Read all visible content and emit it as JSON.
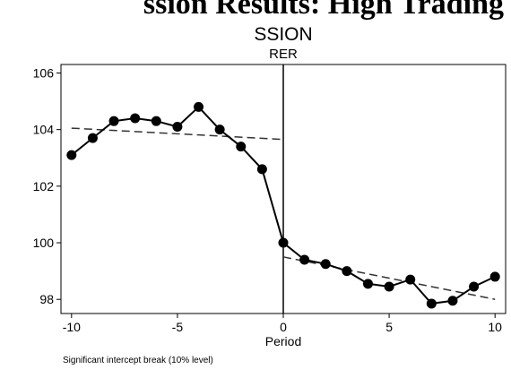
{
  "page_header": {
    "clipped_text": "ssion Results: High Trading"
  },
  "chart_data": {
    "type": "line",
    "title": "SSION",
    "subtitle": "RER",
    "xlabel": "Period",
    "ylabel": "",
    "xlim": [
      -10.5,
      10.5
    ],
    "ylim": [
      97.5,
      106.3
    ],
    "x_ticks": [
      -10,
      -5,
      0,
      5,
      10
    ],
    "y_ticks": [
      98,
      100,
      102,
      104,
      106
    ],
    "series": [
      {
        "name": "",
        "style": "solid-markers",
        "x": [
          -10,
          -9,
          -8,
          -7,
          -6,
          -5,
          -4,
          -3,
          -2,
          -1,
          0,
          1,
          2,
          3,
          4,
          5,
          6,
          7,
          8,
          9,
          10
        ],
        "y": [
          103.1,
          103.7,
          104.3,
          104.4,
          104.3,
          104.1,
          104.8,
          104.0,
          103.4,
          102.6,
          100.0,
          99.4,
          99.25,
          99.0,
          98.55,
          98.45,
          98.7,
          97.85,
          97.95,
          98.45,
          98.8
        ]
      }
    ],
    "trend_lines": [
      {
        "x": [
          -10,
          0
        ],
        "y": [
          104.05,
          103.65
        ]
      },
      {
        "x": [
          0,
          10
        ],
        "y": [
          99.5,
          98.0
        ]
      }
    ],
    "break_line_x": 0,
    "footnote": "Significant intercept break (10% level)",
    "grid": false,
    "legend": "none",
    "colors": {
      "line": "#000000",
      "trend": "#333333",
      "axis": "#000000",
      "background": "#ffffff"
    }
  }
}
